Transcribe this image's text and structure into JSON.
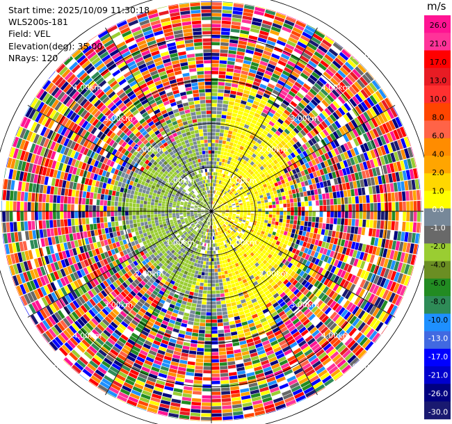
{
  "header": {
    "start_time": "Start time: 2025/10/09 11:30:18",
    "instrument": "WLS200s-181",
    "field": "Field: VEL",
    "elevation": "Elevation(deg): 35.00",
    "nrays": "NRays: 120"
  },
  "chart_data": {
    "type": "heatmap",
    "projection": "polar PPI",
    "rays": 120,
    "range_rings_km": [
      1,
      2,
      3,
      4,
      5
    ],
    "range_ring_labels": [
      "1.00km",
      "2.00km",
      "3.00km",
      "4.00km",
      "5.00km"
    ],
    "colorbar": {
      "unit": "m/s",
      "ticks": [
        "26.0",
        "21.0",
        "17.0",
        "13.0",
        "10.0",
        "8.0",
        "6.0",
        "4.0",
        "2.0",
        "1.0",
        "0.0",
        "-1.0",
        "-2.0",
        "-4.0",
        "-6.0",
        "-8.0",
        "-10.0",
        "-13.0",
        "-17.0",
        "-21.0",
        "-26.0",
        "-30.0"
      ],
      "colors": [
        "#ff1493",
        "#ff3399",
        "#ff0000",
        "#e81c24",
        "#ff3030",
        "#ff4500",
        "#ff6347",
        "#ff8c00",
        "#ffa500",
        "#ffd700",
        "#ffff00",
        "#778899",
        "#696969",
        "#9acd32",
        "#6b8e23",
        "#228b22",
        "#2e8b57",
        "#1e90ff",
        "#4169e1",
        "#0000ff",
        "#0000cd",
        "#000080",
        "#191970"
      ]
    }
  }
}
